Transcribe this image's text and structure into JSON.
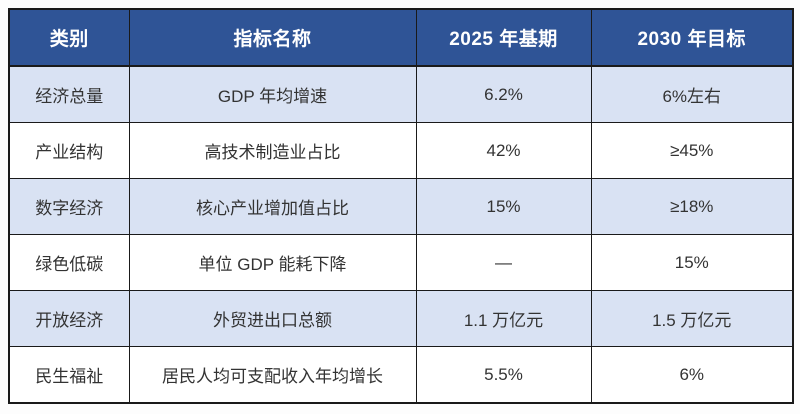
{
  "colors": {
    "header_bg": "#2F5496",
    "header_text": "#FFFFFF",
    "alt_row_bg": "#D9E2F3",
    "row_bg": "#FFFFFF",
    "border": "#1A1A1A",
    "body_text": "#333333"
  },
  "table": {
    "columns": [
      "类别",
      "指标名称",
      "2025 年基期",
      "2030 年目标"
    ],
    "rows": [
      {
        "category": "经济总量",
        "indicator": "GDP 年均增速",
        "base": "6.2%",
        "target": "6%左右"
      },
      {
        "category": "产业结构",
        "indicator": "高技术制造业占比",
        "base": "42%",
        "target": "≥45%"
      },
      {
        "category": "数字经济",
        "indicator": "核心产业增加值占比",
        "base": "15%",
        "target": "≥18%"
      },
      {
        "category": "绿色低碳",
        "indicator": "单位 GDP 能耗下降",
        "base": "—",
        "target": "15%"
      },
      {
        "category": "开放经济",
        "indicator": "外贸进出口总额",
        "base": "1.1 万亿元",
        "target": "1.5 万亿元"
      },
      {
        "category": "民生福祉",
        "indicator": "居民人均可支配收入年均增长",
        "base": "5.5%",
        "target": "6%"
      }
    ]
  }
}
